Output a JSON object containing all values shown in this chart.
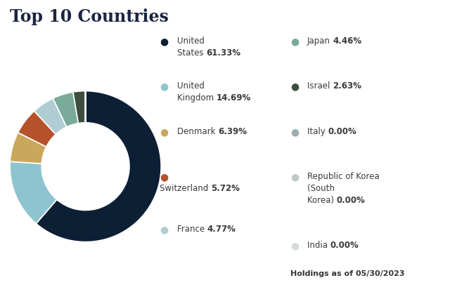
{
  "title": "Top 10 Countries",
  "slices": [
    {
      "label": "United States",
      "value": 61.33,
      "color": "#0d1f35"
    },
    {
      "label": "United Kingdom",
      "value": 14.69,
      "color": "#8ec4cf"
    },
    {
      "label": "Denmark",
      "value": 6.39,
      "color": "#c9a85c"
    },
    {
      "label": "Switzerland",
      "value": 5.72,
      "color": "#b5522b"
    },
    {
      "label": "France",
      "value": 4.77,
      "color": "#b0cdd4"
    },
    {
      "label": "Japan",
      "value": 4.46,
      "color": "#7aaa9a"
    },
    {
      "label": "Israel",
      "value": 2.63,
      "color": "#3d4f3c"
    },
    {
      "label": "Italy",
      "value": 0.001,
      "color": "#9aadad"
    },
    {
      "label": "Republic of Korea",
      "value": 0.001,
      "color": "#c0c8c8"
    },
    {
      "label": "India",
      "value": 0.001,
      "color": "#d5dcdc"
    }
  ],
  "legend_left": [
    {
      "lines": [
        "United",
        "States  61.33%"
      ],
      "bold_word": "61.33%",
      "color": "#0d1f35"
    },
    {
      "lines": [
        "United",
        "Kingdom  14.69%"
      ],
      "bold_word": "14.69%",
      "color": "#8ec4cf"
    },
    {
      "lines": [
        "Denmark  6.39%"
      ],
      "bold_word": "6.39%",
      "color": "#c9a85c"
    },
    {
      "lines": [
        "●",
        "Switzerland  5.72%"
      ],
      "bold_word": "5.72%",
      "color": "#b5522b"
    },
    {
      "lines": [
        "France  4.77%"
      ],
      "bold_word": "4.77%",
      "color": "#b0cdd4"
    }
  ],
  "legend_right": [
    {
      "lines": [
        "Japan  4.46%"
      ],
      "bold_word": "4.46%",
      "color": "#7aaa9a"
    },
    {
      "lines": [
        "Israel  2.63%"
      ],
      "bold_word": "2.63%",
      "color": "#3d4f3c"
    },
    {
      "lines": [
        "Italy  0.00%"
      ],
      "bold_word": "0.00%",
      "color": "#9aadad"
    },
    {
      "lines": [
        "Republic of Korea",
        "(South",
        "Korea)  0.00%"
      ],
      "bold_word": "0.00%",
      "color": "#c0c8c8"
    },
    {
      "lines": [
        "India  0.00%"
      ],
      "bold_word": "0.00%",
      "color": "#d5dcdc"
    }
  ],
  "footnote": "Holdings as of 05/30/2023",
  "bg_color": "#ffffff",
  "title_fontsize": 17,
  "label_fontsize": 8.5,
  "footnote_fontsize": 8
}
